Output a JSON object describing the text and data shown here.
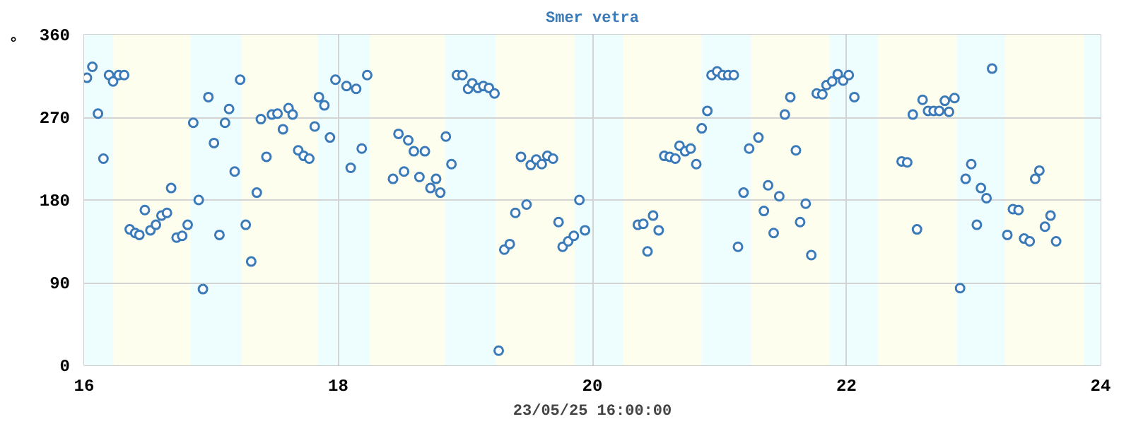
{
  "chart_data": {
    "type": "scatter",
    "title": "Smer vetra",
    "ylabel": "°",
    "xlabel": "23/05/25 16:00:00",
    "xlim": [
      16,
      24
    ],
    "xticks": [
      16,
      18,
      20,
      22,
      24
    ],
    "ylim": [
      0,
      360
    ],
    "yticks": [
      0,
      90,
      180,
      270,
      360
    ],
    "grid": true,
    "marker": "circle",
    "bands": [
      {
        "axis": "x",
        "from": 16,
        "to": 16.23,
        "color": "#eefdfd"
      },
      {
        "axis": "x",
        "from": 16.23,
        "to": 16.84,
        "color": "#fdfeee"
      },
      {
        "axis": "x",
        "from": 16.84,
        "to": 17.24,
        "color": "#eefdfd"
      },
      {
        "axis": "x",
        "from": 17.24,
        "to": 17.84,
        "color": "#fdfeee"
      },
      {
        "axis": "x",
        "from": 17.84,
        "to": 18.25,
        "color": "#eefdfd"
      },
      {
        "axis": "x",
        "from": 18.25,
        "to": 18.84,
        "color": "#fdfeee"
      },
      {
        "axis": "x",
        "from": 18.84,
        "to": 19.24,
        "color": "#eefdfd"
      },
      {
        "axis": "x",
        "from": 19.24,
        "to": 19.86,
        "color": "#fdfeee"
      },
      {
        "axis": "x",
        "from": 19.86,
        "to": 20.24,
        "color": "#eefdfd"
      },
      {
        "axis": "x",
        "from": 20.24,
        "to": 20.86,
        "color": "#fdfeee"
      },
      {
        "axis": "x",
        "from": 20.86,
        "to": 21.25,
        "color": "#eefdfd"
      },
      {
        "axis": "x",
        "from": 21.25,
        "to": 21.87,
        "color": "#fdfeee"
      },
      {
        "axis": "x",
        "from": 21.87,
        "to": 22.25,
        "color": "#eefdfd"
      },
      {
        "axis": "x",
        "from": 22.25,
        "to": 22.87,
        "color": "#fdfeee"
      },
      {
        "axis": "x",
        "from": 22.87,
        "to": 23.25,
        "color": "#eefdfd"
      },
      {
        "axis": "x",
        "from": 23.25,
        "to": 23.87,
        "color": "#fdfeee"
      },
      {
        "axis": "x",
        "from": 23.87,
        "to": 24,
        "color": "#eefdfd"
      }
    ],
    "series": [
      {
        "color": "#3a7ab8",
        "x": [
          16.022,
          16.065,
          16.109,
          16.152,
          16.196,
          16.228,
          16.272,
          16.315,
          16.359,
          16.402,
          16.435,
          16.478,
          16.522,
          16.565,
          16.609,
          16.652,
          16.685,
          16.728,
          16.772,
          16.815,
          16.859,
          16.902,
          16.935,
          16.978,
          17.022,
          17.065,
          17.109,
          17.141,
          17.185,
          17.228,
          17.272,
          17.315,
          17.359,
          17.391,
          17.435,
          17.478,
          17.522,
          17.565,
          17.609,
          17.641,
          17.685,
          17.728,
          17.772,
          17.815,
          17.848,
          17.891,
          17.935,
          17.978,
          18.065,
          18.098,
          18.141,
          18.185,
          18.228,
          18.431,
          18.474,
          18.518,
          18.551,
          18.595,
          18.639,
          18.682,
          18.726,
          18.77,
          18.803,
          18.847,
          18.891,
          18.934,
          18.978,
          19.022,
          19.055,
          19.099,
          19.142,
          19.186,
          19.23,
          19.263,
          19.307,
          19.35,
          19.394,
          19.438,
          19.482,
          19.515,
          19.558,
          19.602,
          19.646,
          19.69,
          19.734,
          19.766,
          19.81,
          19.854,
          19.898,
          19.942,
          20.358,
          20.401,
          20.434,
          20.478,
          20.522,
          20.566,
          20.609,
          20.653,
          20.686,
          20.73,
          20.774,
          20.818,
          20.861,
          20.905,
          20.938,
          20.982,
          21.026,
          21.069,
          21.113,
          21.146,
          21.19,
          21.234,
          21.307,
          21.35,
          21.383,
          21.427,
          21.471,
          21.515,
          21.558,
          21.602,
          21.635,
          21.679,
          21.723,
          21.766,
          21.81,
          21.843,
          21.887,
          21.931,
          21.974,
          22.018,
          22.062,
          22.434,
          22.478,
          22.522,
          22.555,
          22.599,
          22.642,
          22.686,
          22.73,
          22.774,
          22.807,
          22.85,
          22.894,
          22.938,
          22.982,
          23.026,
          23.058,
          23.102,
          23.146,
          23.266,
          23.31,
          23.354,
          23.398,
          23.442,
          23.485,
          23.518,
          23.562,
          23.606,
          23.65
        ],
        "values": [
          313,
          325,
          274,
          225,
          316,
          309,
          316,
          316,
          148,
          144,
          142,
          169,
          147,
          153,
          163,
          166,
          193,
          139,
          141,
          153,
          264,
          180,
          83,
          292,
          242,
          142,
          264,
          279,
          211,
          311,
          153,
          113,
          188,
          268,
          227,
          273,
          274,
          257,
          280,
          273,
          234,
          228,
          225,
          260,
          292,
          283,
          248,
          311,
          304,
          215,
          301,
          236,
          316,
          203,
          252,
          211,
          245,
          233,
          205,
          233,
          193,
          203,
          188,
          249,
          219,
          316,
          316,
          301,
          307,
          302,
          304,
          302,
          296,
          16,
          126,
          132,
          166,
          227,
          175,
          218,
          224,
          219,
          228,
          225,
          156,
          129,
          135,
          141,
          180,
          147,
          153,
          154,
          124,
          163,
          147,
          228,
          227,
          225,
          239,
          233,
          236,
          219,
          258,
          277,
          316,
          320,
          316,
          316,
          316,
          129,
          188,
          236,
          248,
          168,
          196,
          144,
          184,
          273,
          292,
          234,
          156,
          176,
          120,
          296,
          295,
          305,
          309,
          317,
          310,
          316,
          292,
          222,
          221,
          273,
          148,
          289,
          277,
          277,
          277,
          288,
          276,
          291,
          84,
          203,
          219,
          153,
          193,
          182,
          323,
          142,
          170,
          169,
          138,
          135,
          203,
          212,
          151,
          163,
          135
        ]
      }
    ]
  }
}
